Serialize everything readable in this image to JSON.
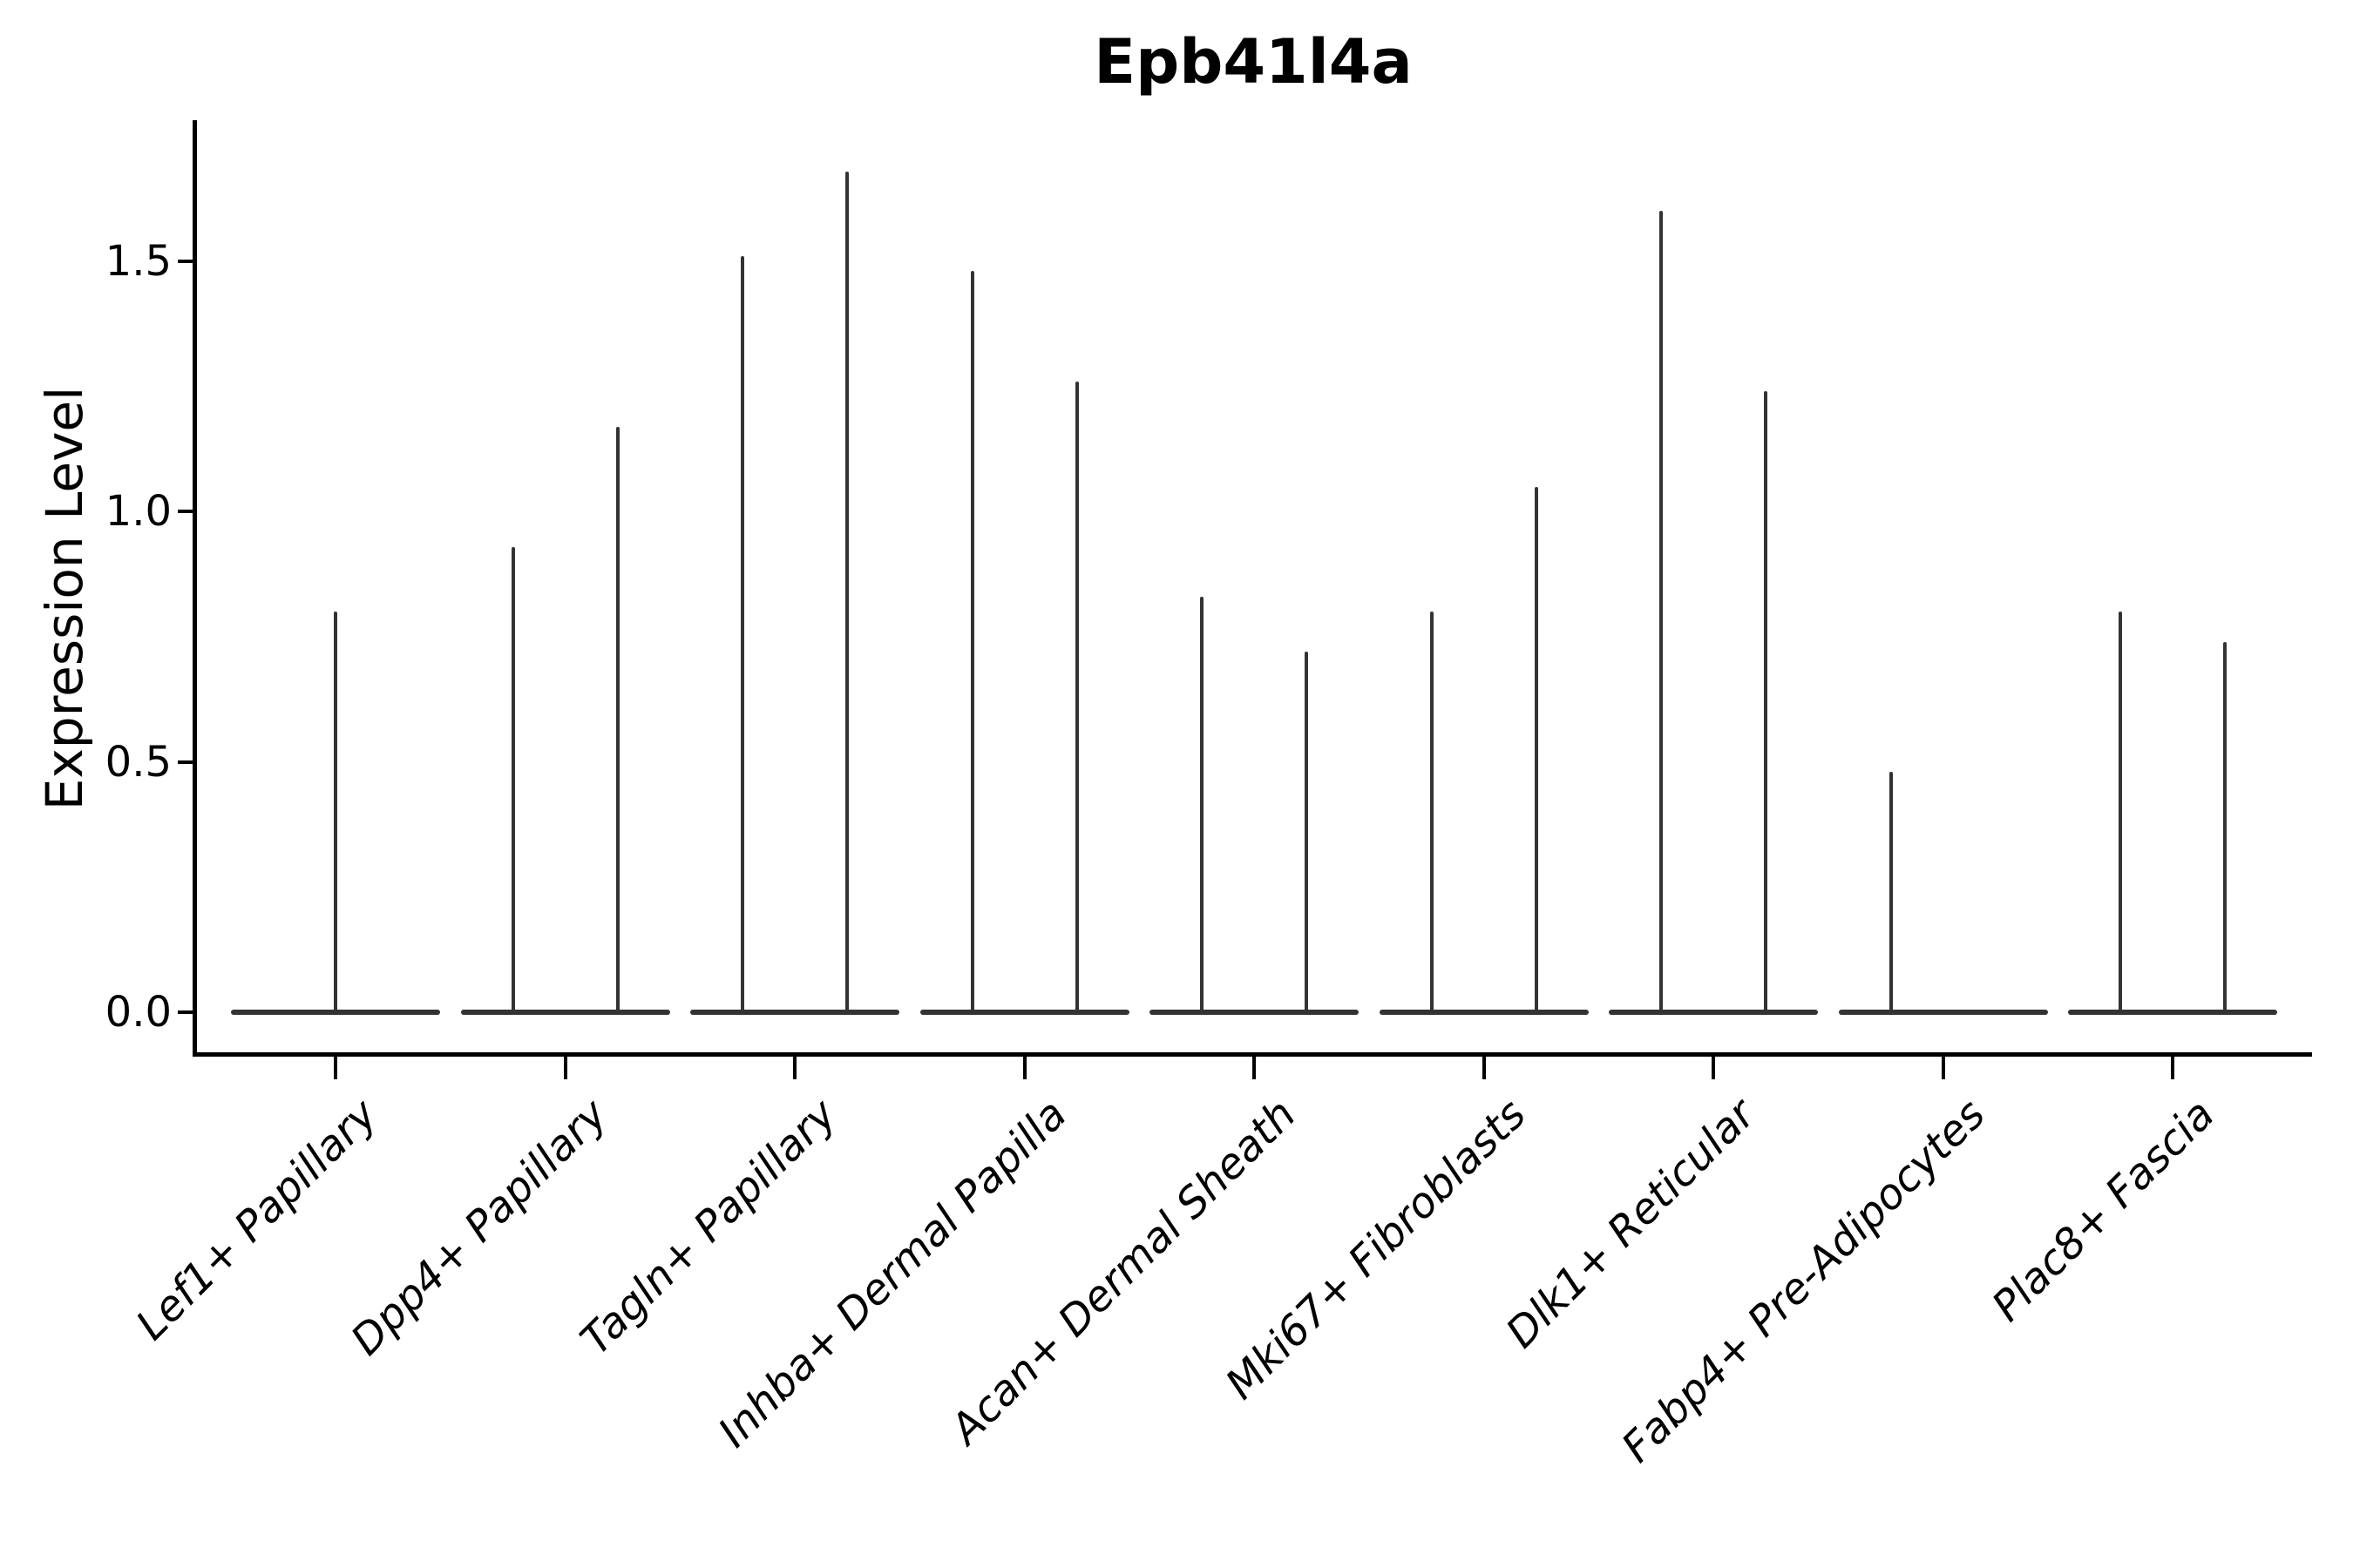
{
  "style": {
    "background": "#ffffff",
    "axis_color": "#000000",
    "violin_color": "#333333",
    "text_color": "#000000"
  },
  "chart_data": {
    "type": "violin",
    "title": "Epb41l4a",
    "xlabel": "",
    "ylabel": "Expression Level",
    "ylim": [
      -0.08,
      1.78
    ],
    "grid": false,
    "legend": null,
    "yticks": [
      {
        "value": 0.0,
        "label": "0.0"
      },
      {
        "value": 0.5,
        "label": "0.5"
      },
      {
        "value": 1.0,
        "label": "1.0"
      },
      {
        "value": 1.5,
        "label": "1.5"
      }
    ],
    "categories": [
      "Lef1+ Papillary",
      "Dpp4+ Papillary",
      "Tagln+ Papillary",
      "Inhba+ Dermal Papilla",
      "Acan+ Dermal Sheath",
      "Mki67+ Fibroblasts",
      "Dlk1+ Reticular",
      "Fabp4+ Pre-Adipocytes",
      "Plac8+ Fascia"
    ],
    "description": "Needle-thin violin plot: bulk of cells at expression 0 forms a flat base line spanning each category; each thin vertical spike marks the upper expression tail of one violin. Most categories contain two side-by-side violins; Lef1+ Papillary shows a single centered spike and Fabp4+ Pre-Adipocytes only a left spike.",
    "violins": [
      {
        "category": "Lef1+ Papillary",
        "spikes": [
          {
            "position": "center",
            "max_expression": 0.8
          }
        ]
      },
      {
        "category": "Dpp4+ Papillary",
        "spikes": [
          {
            "position": "left",
            "max_expression": 0.93
          },
          {
            "position": "right",
            "max_expression": 1.17
          }
        ]
      },
      {
        "category": "Tagln+ Papillary",
        "spikes": [
          {
            "position": "left",
            "max_expression": 1.51
          },
          {
            "position": "right",
            "max_expression": 1.68
          }
        ]
      },
      {
        "category": "Inhba+ Dermal Papilla",
        "spikes": [
          {
            "position": "left",
            "max_expression": 1.48
          },
          {
            "position": "right",
            "max_expression": 1.26
          }
        ]
      },
      {
        "category": "Acan+ Dermal Sheath",
        "spikes": [
          {
            "position": "left",
            "max_expression": 0.83
          },
          {
            "position": "right",
            "max_expression": 0.72
          }
        ]
      },
      {
        "category": "Mki67+ Fibroblasts",
        "spikes": [
          {
            "position": "left",
            "max_expression": 0.8
          },
          {
            "position": "right",
            "max_expression": 1.05
          }
        ]
      },
      {
        "category": "Dlk1+ Reticular",
        "spikes": [
          {
            "position": "left",
            "max_expression": 1.6
          },
          {
            "position": "right",
            "max_expression": 1.24
          }
        ]
      },
      {
        "category": "Fabp4+ Pre-Adipocytes",
        "spikes": [
          {
            "position": "left",
            "max_expression": 0.48
          }
        ]
      },
      {
        "category": "Plac8+ Fascia",
        "spikes": [
          {
            "position": "left",
            "max_expression": 0.8
          },
          {
            "position": "right",
            "max_expression": 0.74
          }
        ]
      }
    ]
  }
}
